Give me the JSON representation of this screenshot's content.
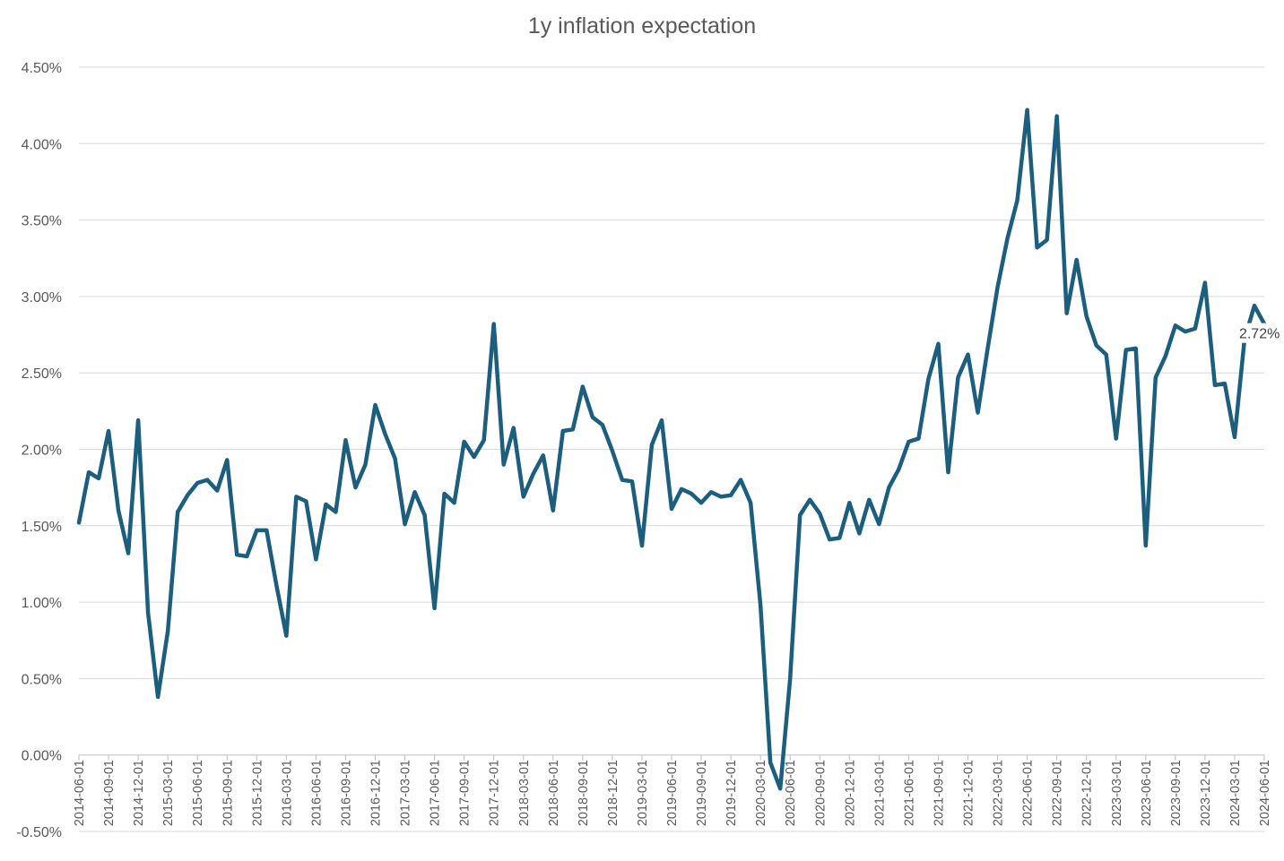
{
  "chart_data": {
    "type": "line",
    "title": "1y inflation expectation",
    "xlabel": "",
    "ylabel": "",
    "ylim": [
      -0.5,
      4.5
    ],
    "y_ticks": [
      -0.5,
      0.0,
      0.5,
      1.0,
      1.5,
      2.0,
      2.5,
      3.0,
      3.5,
      4.0,
      4.5
    ],
    "y_tick_labels": [
      "-0.50%",
      "0.00%",
      "0.50%",
      "1.00%",
      "1.50%",
      "2.00%",
      "2.50%",
      "3.00%",
      "3.50%",
      "4.00%",
      "4.50%"
    ],
    "x_tick_labels": [
      "2014-06-01",
      "2014-09-01",
      "2014-12-01",
      "2015-03-01",
      "2015-06-01",
      "2015-09-01",
      "2015-12-01",
      "2016-03-01",
      "2016-06-01",
      "2016-09-01",
      "2016-12-01",
      "2017-03-01",
      "2017-06-01",
      "2017-09-01",
      "2017-12-01",
      "2018-03-01",
      "2018-06-01",
      "2018-09-01",
      "2018-12-01",
      "2019-03-01",
      "2019-06-01",
      "2019-09-01",
      "2019-12-01",
      "2020-03-01",
      "2020-06-01",
      "2020-09-01",
      "2020-12-01",
      "2021-03-01",
      "2021-06-01",
      "2021-09-01",
      "2021-12-01",
      "2022-03-01",
      "2022-06-01",
      "2022-09-01",
      "2022-12-01",
      "2023-03-01",
      "2023-06-01",
      "2023-09-01",
      "2023-12-01",
      "2024-03-01",
      "2024-06-01"
    ],
    "grid": true,
    "legend": "none",
    "line_color": "#1b5e7e",
    "series": [
      {
        "x": [
          "2014-06-01",
          "2014-07-01",
          "2014-08-01",
          "2014-09-01",
          "2014-10-01",
          "2014-11-01",
          "2014-12-01",
          "2015-01-01",
          "2015-02-01",
          "2015-03-01",
          "2015-04-01",
          "2015-05-01",
          "2015-06-01",
          "2015-07-01",
          "2015-08-01",
          "2015-09-01",
          "2015-10-01",
          "2015-11-01",
          "2015-12-01",
          "2016-01-01",
          "2016-02-01",
          "2016-03-01",
          "2016-04-01",
          "2016-05-01",
          "2016-06-01",
          "2016-07-01",
          "2016-08-01",
          "2016-09-01",
          "2016-10-01",
          "2016-11-01",
          "2016-12-01",
          "2017-01-01",
          "2017-02-01",
          "2017-03-01",
          "2017-04-01",
          "2017-05-01",
          "2017-06-01",
          "2017-07-01",
          "2017-08-01",
          "2017-09-01",
          "2017-10-01",
          "2017-11-01",
          "2017-12-01",
          "2018-01-01",
          "2018-02-01",
          "2018-03-01",
          "2018-04-01",
          "2018-05-01",
          "2018-06-01",
          "2018-07-01",
          "2018-08-01",
          "2018-09-01",
          "2018-10-01",
          "2018-11-01",
          "2018-12-01",
          "2019-01-01",
          "2019-02-01",
          "2019-03-01",
          "2019-04-01",
          "2019-05-01",
          "2019-06-01",
          "2019-07-01",
          "2019-08-01",
          "2019-09-01",
          "2019-10-01",
          "2019-11-01",
          "2019-12-01",
          "2020-01-01",
          "2020-02-01",
          "2020-03-01",
          "2020-04-01",
          "2020-05-01",
          "2020-06-01",
          "2020-07-01",
          "2020-08-01",
          "2020-09-01",
          "2020-10-01",
          "2020-11-01",
          "2020-12-01",
          "2021-01-01",
          "2021-02-01",
          "2021-03-01",
          "2021-04-01",
          "2021-05-01",
          "2021-06-01",
          "2021-07-01",
          "2021-08-01",
          "2021-09-01",
          "2021-10-01",
          "2021-11-01",
          "2021-12-01",
          "2022-01-01",
          "2022-02-01",
          "2022-03-01",
          "2022-04-01",
          "2022-05-01",
          "2022-06-01",
          "2022-07-01",
          "2022-08-01",
          "2022-09-01",
          "2022-10-01",
          "2022-11-01",
          "2022-12-01",
          "2023-01-01",
          "2023-02-01",
          "2023-03-01",
          "2023-04-01",
          "2023-05-01",
          "2023-06-01",
          "2023-07-01",
          "2023-08-01",
          "2023-09-01",
          "2023-10-01",
          "2023-11-01",
          "2023-12-01",
          "2024-01-01",
          "2024-02-01",
          "2024-03-01",
          "2024-04-01",
          "2024-05-01",
          "2024-06-01"
        ],
        "y": [
          1.52,
          1.85,
          1.81,
          2.12,
          1.6,
          1.32,
          2.19,
          0.93,
          0.38,
          0.81,
          1.59,
          1.7,
          1.78,
          1.8,
          1.73,
          1.93,
          1.31,
          1.3,
          1.47,
          1.47,
          1.11,
          0.78,
          1.69,
          1.66,
          1.28,
          1.64,
          1.59,
          2.06,
          1.75,
          1.9,
          2.29,
          2.1,
          1.94,
          1.51,
          1.72,
          1.57,
          0.96,
          1.71,
          1.65,
          2.05,
          1.95,
          2.06,
          2.82,
          1.9,
          2.14,
          1.69,
          1.84,
          1.96,
          1.6,
          2.12,
          2.13,
          2.41,
          2.21,
          2.16,
          1.99,
          1.8,
          1.79,
          1.37,
          2.03,
          2.19,
          1.61,
          1.74,
          1.71,
          1.65,
          1.72,
          1.69,
          1.7,
          1.8,
          1.65,
          0.98,
          -0.05,
          -0.22,
          0.5,
          1.57,
          1.67,
          1.58,
          1.41,
          1.42,
          1.65,
          1.45,
          1.67,
          1.51,
          1.75,
          1.87,
          2.05,
          2.07,
          2.46,
          2.69,
          1.85,
          2.47,
          2.62,
          2.24,
          2.66,
          3.06,
          3.38,
          3.63,
          4.22,
          3.32,
          3.37,
          4.18,
          2.89,
          3.24,
          2.87,
          2.68,
          2.62,
          2.07,
          2.65,
          2.66,
          1.37,
          2.47,
          2.61,
          2.81,
          2.77,
          2.79,
          3.09,
          2.42,
          2.43,
          2.08,
          2.72,
          2.94,
          2.82
        ]
      }
    ],
    "annotations": [
      {
        "x": "2024-04-01",
        "text": "2.72%"
      }
    ]
  }
}
